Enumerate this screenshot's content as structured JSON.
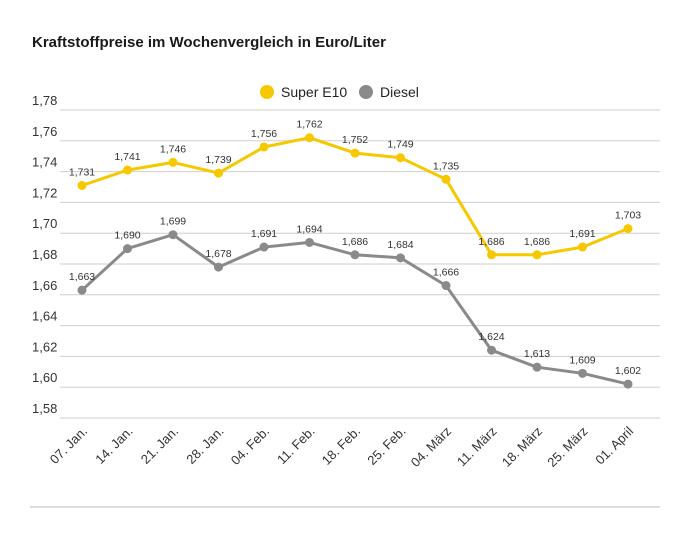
{
  "title": "Kraftstoffpreise im Wochenvergleich in Euro/Liter",
  "chart_data": {
    "type": "line",
    "categories": [
      "07. Jan.",
      "14. Jan.",
      "21. Jan.",
      "28. Jan.",
      "04. Feb.",
      "11. Feb.",
      "18. Feb.",
      "25. Feb.",
      "04. März",
      "11. März",
      "18. März",
      "25. März",
      "01. April"
    ],
    "series": [
      {
        "name": "Super E10",
        "color": "#f5c800",
        "values": [
          1.731,
          1.741,
          1.746,
          1.739,
          1.756,
          1.762,
          1.752,
          1.749,
          1.735,
          1.686,
          1.686,
          1.691,
          1.703
        ],
        "labels": [
          "1,731",
          "1,741",
          "1,746",
          "1,739",
          "1,756",
          "1,762",
          "1,752",
          "1,749",
          "1,735",
          "1,686",
          "1,686",
          "1,691",
          "1,703"
        ]
      },
      {
        "name": "Diesel",
        "color": "#8a8a8a",
        "values": [
          1.663,
          1.69,
          1.699,
          1.678,
          1.691,
          1.694,
          1.686,
          1.684,
          1.666,
          1.624,
          1.613,
          1.609,
          1.602
        ],
        "labels": [
          "1,663",
          "1,690",
          "1,699",
          "1,678",
          "1,691",
          "1,694",
          "1,686",
          "1,684",
          "1,666",
          "1,624",
          "1,613",
          "1,609",
          "1,602"
        ]
      }
    ],
    "ylim": [
      1.58,
      1.78
    ],
    "yticks": [
      1.78,
      1.76,
      1.74,
      1.72,
      1.7,
      1.68,
      1.66,
      1.64,
      1.62,
      1.6,
      1.58
    ],
    "ytick_labels": [
      "1,78",
      "1,76",
      "1,74",
      "1,72",
      "1,70",
      "1,68",
      "1,66",
      "1,64",
      "1,62",
      "1,60",
      "1,58"
    ],
    "grid": true,
    "legend_position": "top-center",
    "xlabel": "",
    "ylabel": ""
  }
}
